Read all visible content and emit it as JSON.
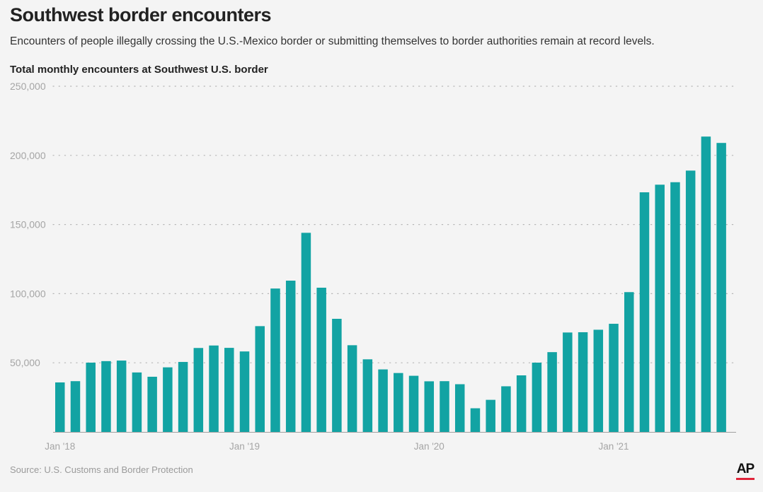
{
  "title": "Southwest border encounters",
  "subtitle": "Encounters of people illegally crossing the U.S.-Mexico border or submitting themselves to border authorities remain at record levels.",
  "source": "Source: U.S. Customs and Border Protection",
  "logo": "AP",
  "colors": {
    "bar": "#12a3a3",
    "grid": "#b5b5b5",
    "tick_text": "#a5a5a5",
    "background": "#f4f4f4",
    "logo_accent": "#e0243a"
  },
  "chart_data": {
    "type": "bar",
    "title": "Total monthly encounters at Southwest U.S. border",
    "xlabel": "",
    "ylabel": "",
    "ylim": [
      0,
      250000
    ],
    "yticks": [
      50000,
      100000,
      150000,
      200000,
      250000
    ],
    "ytick_labels": [
      "50,000",
      "100,000",
      "150,000",
      "200,000",
      "250,000"
    ],
    "xtick_labels": [
      {
        "index": 0,
        "label": "Jan '18"
      },
      {
        "index": 12,
        "label": "Jan '19"
      },
      {
        "index": 24,
        "label": "Jan '20"
      },
      {
        "index": 36,
        "label": "Jan '21"
      }
    ],
    "grid": true,
    "grid_style": "dotted",
    "categories": [
      "2018-01",
      "2018-02",
      "2018-03",
      "2018-04",
      "2018-05",
      "2018-06",
      "2018-07",
      "2018-08",
      "2018-09",
      "2018-10",
      "2018-11",
      "2018-12",
      "2019-01",
      "2019-02",
      "2019-03",
      "2019-04",
      "2019-05",
      "2019-06",
      "2019-07",
      "2019-08",
      "2019-09",
      "2019-10",
      "2019-11",
      "2019-12",
      "2020-01",
      "2020-02",
      "2020-03",
      "2020-04",
      "2020-05",
      "2020-06",
      "2020-07",
      "2020-08",
      "2020-09",
      "2020-10",
      "2020-11",
      "2020-12",
      "2021-01",
      "2021-02",
      "2021-03",
      "2021-04",
      "2021-05",
      "2021-06",
      "2021-07",
      "2021-08"
    ],
    "values": [
      35800,
      36700,
      50100,
      51200,
      51600,
      43000,
      39900,
      46700,
      50600,
      60700,
      62500,
      60800,
      58200,
      76500,
      103700,
      109400,
      144000,
      104300,
      81800,
      62700,
      52500,
      45200,
      42600,
      40600,
      36600,
      36700,
      34500,
      17100,
      23200,
      33000,
      40900,
      50100,
      57700,
      71900,
      72100,
      73900,
      78200,
      101100,
      173300,
      178800,
      180600,
      189000,
      213600,
      209000
    ]
  }
}
